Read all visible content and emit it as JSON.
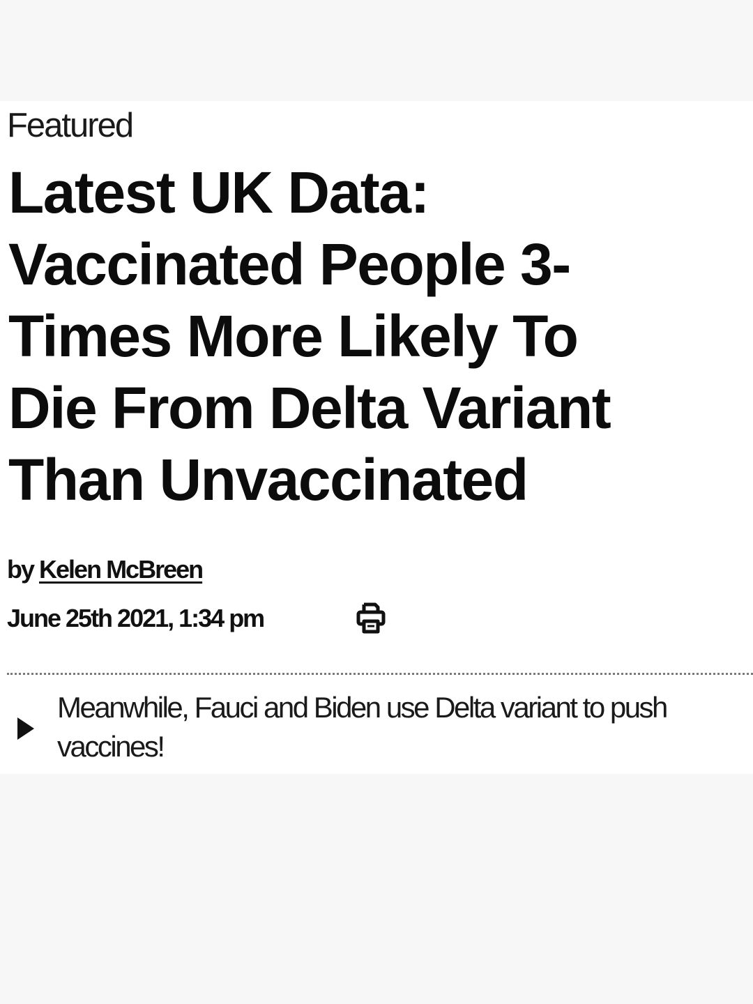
{
  "article": {
    "section_label": "Featured",
    "headline_lines": [
      "Latest UK Data:",
      "Vaccinated People 3-",
      "Times More Likely To",
      "Die From Delta Variant",
      "Than Unvaccinated"
    ],
    "byline_prefix": "by",
    "author": "Kelen McBreen",
    "date": "June 25th 2021, 1:34 pm",
    "print_icon": "printer-icon"
  },
  "related": {
    "icon": "play-triangle-icon",
    "text": "Meanwhile, Fauci and Biden use Delta variant to push vaccines!"
  },
  "colors": {
    "page_background": "#f7f7f7",
    "card_background": "#ffffff",
    "text": "#111111",
    "divider": "#7a7a7a"
  }
}
